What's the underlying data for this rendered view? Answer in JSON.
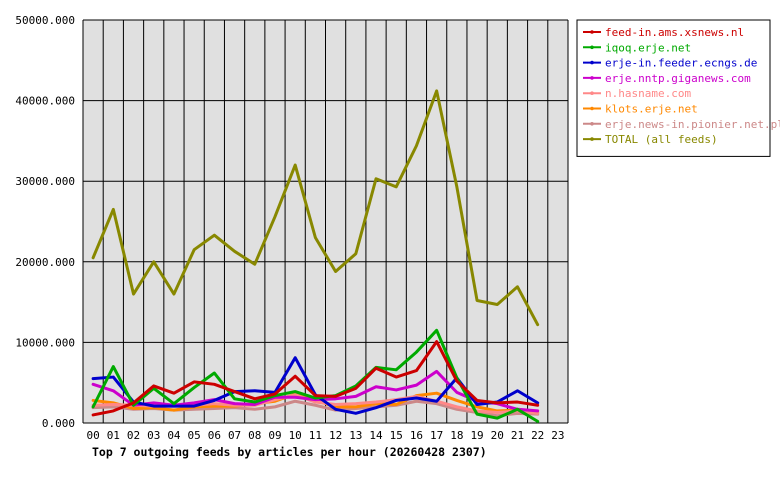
{
  "chart_data": {
    "type": "line",
    "title": "Top 7 outgoing feeds by articles per hour (20260428 2307)",
    "xlabel": "",
    "ylabel": "",
    "categories": [
      "00",
      "01",
      "02",
      "03",
      "04",
      "05",
      "06",
      "07",
      "08",
      "09",
      "10",
      "11",
      "12",
      "13",
      "14",
      "15",
      "16",
      "17",
      "18",
      "19",
      "20",
      "21",
      "22",
      "23"
    ],
    "ylim": [
      0,
      50000
    ],
    "yticks": [
      "0.000",
      "10000.000",
      "20000.000",
      "30000.000",
      "40000.000",
      "50000.000"
    ],
    "yticks_values": [
      0,
      10000,
      20000,
      30000,
      40000,
      50000
    ],
    "grid": true,
    "legend_position": "top-right",
    "series": [
      {
        "name": "feed-in.ams.xsnews.nl",
        "color": "#cc0000",
        "values": [
          1000,
          1500,
          2500,
          4600,
          3700,
          5100,
          4800,
          3900,
          3000,
          3600,
          5800,
          3400,
          3300,
          4300,
          6800,
          5700,
          6500,
          10100,
          5200,
          2800,
          2500,
          2600,
          2200,
          null
        ]
      },
      {
        "name": "iqoq.erje.net",
        "color": "#00aa00",
        "values": [
          2000,
          7000,
          2200,
          4300,
          2400,
          4400,
          6200,
          3000,
          2600,
          3400,
          3900,
          3100,
          3400,
          4600,
          6900,
          6600,
          8800,
          11500,
          5600,
          1100,
          600,
          1700,
          200,
          null
        ]
      },
      {
        "name": "erje-in.feeder.ecngs.de",
        "color": "#0000cc",
        "values": [
          5500,
          5700,
          2600,
          2100,
          2100,
          2100,
          2800,
          3900,
          4000,
          3800,
          8100,
          3500,
          1700,
          1200,
          1900,
          2800,
          3100,
          2700,
          5600,
          2300,
          2600,
          4000,
          2500,
          null
        ]
      },
      {
        "name": "erje.nntp.giganews.com",
        "color": "#cc00cc",
        "values": [
          4800,
          4000,
          2200,
          2500,
          2200,
          2500,
          2900,
          2400,
          2300,
          3200,
          3200,
          2900,
          3000,
          3300,
          4500,
          4100,
          4700,
          6400,
          3800,
          2700,
          2400,
          1700,
          1500,
          null
        ]
      },
      {
        "name": "n.hasname.com",
        "color": "#ff8888",
        "values": [
          2200,
          2300,
          2200,
          2100,
          2100,
          2200,
          2400,
          2200,
          2200,
          2900,
          3500,
          2600,
          2300,
          2400,
          2600,
          2900,
          3300,
          2700,
          2000,
          1500,
          1300,
          1500,
          1200,
          null
        ]
      },
      {
        "name": "klots.erje.net",
        "color": "#ff8800",
        "values": [
          2800,
          2500,
          1800,
          1900,
          1600,
          2000,
          2100,
          2100,
          2400,
          2700,
          3600,
          2800,
          2000,
          2000,
          2400,
          2300,
          3400,
          3700,
          2800,
          2000,
          1500,
          1600,
          1300,
          null
        ]
      },
      {
        "name": "erje.news-in.pionier.net.pl",
        "color": "#cc8888",
        "values": [
          1900,
          2000,
          1700,
          1800,
          1600,
          1700,
          1800,
          1900,
          1700,
          2000,
          2700,
          2200,
          1600,
          1800,
          2000,
          2200,
          2700,
          2400,
          1700,
          1300,
          900,
          1200,
          1100,
          null
        ]
      },
      {
        "name": "TOTAL (all feeds)",
        "color": "#888800",
        "values": [
          20500,
          26500,
          16000,
          20000,
          16000,
          21500,
          23300,
          21300,
          19700,
          25600,
          32000,
          23000,
          18800,
          21000,
          30300,
          29300,
          34400,
          41200,
          29300,
          15200,
          14700,
          16900,
          12200,
          null
        ]
      }
    ]
  }
}
